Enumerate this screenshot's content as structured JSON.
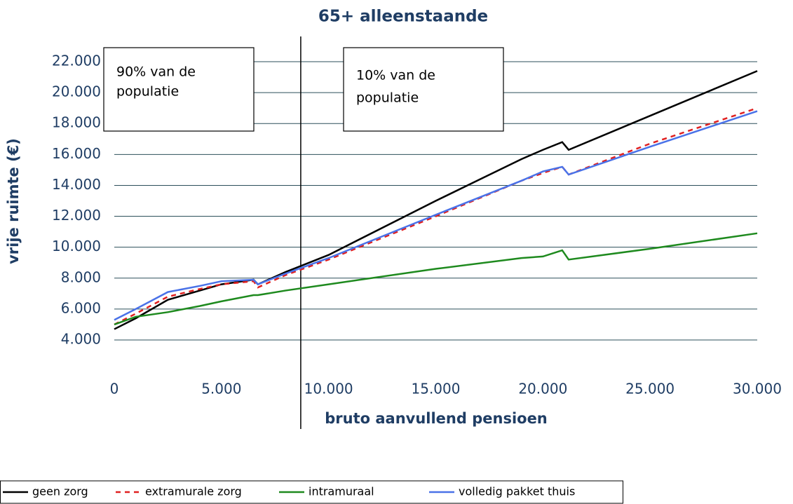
{
  "chart_data": {
    "type": "line",
    "title": "65+ alleenstaande",
    "x_label": "bruto aanvullend pensioen",
    "y_label": "vrije ruimte (€)",
    "x": [
      0,
      1000,
      2500,
      4000,
      5000,
      6500,
      6700,
      8000,
      10000,
      15000,
      19000,
      20000,
      20900,
      21200,
      25000,
      30000
    ],
    "series": [
      {
        "name": "geen zorg",
        "color": "#000000",
        "dash": "solid",
        "values": [
          4700,
          5400,
          6600,
          7200,
          7600,
          7900,
          7600,
          8400,
          9500,
          13000,
          15700,
          16300,
          16800,
          16300,
          18500,
          21400
        ]
      },
      {
        "name": "extramurale zorg",
        "color": "#e02020",
        "dash": "dashed",
        "values": [
          5000,
          5700,
          6800,
          7300,
          7600,
          7800,
          7400,
          8200,
          9200,
          12000,
          14300,
          14800,
          15200,
          14700,
          16700,
          19000
        ]
      },
      {
        "name": "intramuraal",
        "color": "#1e8a1e",
        "dash": "solid",
        "values": [
          5000,
          5500,
          5800,
          6200,
          6500,
          6900,
          6900,
          7200,
          7600,
          8600,
          9300,
          9400,
          9800,
          9200,
          9900,
          10900
        ]
      },
      {
        "name": "volledig pakket thuis",
        "color": "#4a72e8",
        "dash": "solid",
        "values": [
          5300,
          6000,
          7100,
          7500,
          7800,
          7900,
          7600,
          8300,
          9300,
          12100,
          14300,
          14900,
          15200,
          14700,
          16500,
          18800
        ]
      }
    ],
    "xlim": [
      0,
      30000
    ],
    "xticks": [
      0,
      {
        "value": 5000,
        "label": "5.000"
      },
      {
        "value": 10000,
        "label": "10.000"
      },
      {
        "value": 15000,
        "label": "15.000"
      },
      {
        "value": 20000,
        "label": "20.000"
      },
      {
        "value": 25000,
        "label": "25.000"
      },
      {
        "value": 30000,
        "label": "30.000"
      }
    ],
    "ylim": [
      4000,
      22000
    ],
    "yticks": [
      {
        "value": 4000,
        "label": "4.000"
      },
      {
        "value": 6000,
        "label": "6.000"
      },
      {
        "value": 8000,
        "label": "8.000"
      },
      {
        "value": 10000,
        "label": "10.000"
      },
      {
        "value": 12000,
        "label": "12.000"
      },
      {
        "value": 14000,
        "label": "14.000"
      },
      {
        "value": 16000,
        "label": "16.000"
      },
      {
        "value": 18000,
        "label": "18.000"
      },
      {
        "value": 20000,
        "label": "20.000"
      },
      {
        "value": 22000,
        "label": "22.000"
      }
    ],
    "grid": true,
    "reference_line_x": 8700,
    "annotations": [
      [
        "90% van de",
        "populatie"
      ],
      [
        "10% van de",
        "populatie"
      ]
    ],
    "legend": "bottom"
  }
}
